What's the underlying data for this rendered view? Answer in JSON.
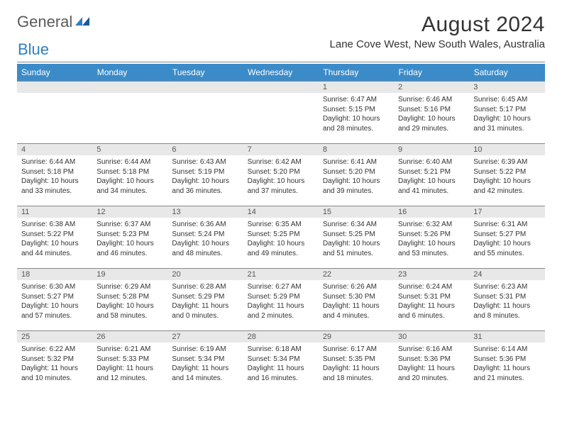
{
  "logo": {
    "text1": "General",
    "text2": "Blue"
  },
  "title": "August 2024",
  "location": "Lane Cove West, New South Wales, Australia",
  "colors": {
    "header_bg": "#3b8bc9",
    "header_text": "#ffffff",
    "daynum_bg": "#e8e8e8",
    "border": "#888888",
    "logo_gray": "#5a5a5a",
    "logo_blue": "#2f7fc1",
    "text": "#333333"
  },
  "day_names": [
    "Sunday",
    "Monday",
    "Tuesday",
    "Wednesday",
    "Thursday",
    "Friday",
    "Saturday"
  ],
  "weeks": [
    [
      {
        "blank": true
      },
      {
        "blank": true
      },
      {
        "blank": true
      },
      {
        "blank": true
      },
      {
        "n": "1",
        "sr": "6:47 AM",
        "ss": "5:15 PM",
        "d1": "10 hours",
        "d2": "and 28 minutes."
      },
      {
        "n": "2",
        "sr": "6:46 AM",
        "ss": "5:16 PM",
        "d1": "10 hours",
        "d2": "and 29 minutes."
      },
      {
        "n": "3",
        "sr": "6:45 AM",
        "ss": "5:17 PM",
        "d1": "10 hours",
        "d2": "and 31 minutes."
      }
    ],
    [
      {
        "n": "4",
        "sr": "6:44 AM",
        "ss": "5:18 PM",
        "d1": "10 hours",
        "d2": "and 33 minutes."
      },
      {
        "n": "5",
        "sr": "6:44 AM",
        "ss": "5:18 PM",
        "d1": "10 hours",
        "d2": "and 34 minutes."
      },
      {
        "n": "6",
        "sr": "6:43 AM",
        "ss": "5:19 PM",
        "d1": "10 hours",
        "d2": "and 36 minutes."
      },
      {
        "n": "7",
        "sr": "6:42 AM",
        "ss": "5:20 PM",
        "d1": "10 hours",
        "d2": "and 37 minutes."
      },
      {
        "n": "8",
        "sr": "6:41 AM",
        "ss": "5:20 PM",
        "d1": "10 hours",
        "d2": "and 39 minutes."
      },
      {
        "n": "9",
        "sr": "6:40 AM",
        "ss": "5:21 PM",
        "d1": "10 hours",
        "d2": "and 41 minutes."
      },
      {
        "n": "10",
        "sr": "6:39 AM",
        "ss": "5:22 PM",
        "d1": "10 hours",
        "d2": "and 42 minutes."
      }
    ],
    [
      {
        "n": "11",
        "sr": "6:38 AM",
        "ss": "5:22 PM",
        "d1": "10 hours",
        "d2": "and 44 minutes."
      },
      {
        "n": "12",
        "sr": "6:37 AM",
        "ss": "5:23 PM",
        "d1": "10 hours",
        "d2": "and 46 minutes."
      },
      {
        "n": "13",
        "sr": "6:36 AM",
        "ss": "5:24 PM",
        "d1": "10 hours",
        "d2": "and 48 minutes."
      },
      {
        "n": "14",
        "sr": "6:35 AM",
        "ss": "5:25 PM",
        "d1": "10 hours",
        "d2": "and 49 minutes."
      },
      {
        "n": "15",
        "sr": "6:34 AM",
        "ss": "5:25 PM",
        "d1": "10 hours",
        "d2": "and 51 minutes."
      },
      {
        "n": "16",
        "sr": "6:32 AM",
        "ss": "5:26 PM",
        "d1": "10 hours",
        "d2": "and 53 minutes."
      },
      {
        "n": "17",
        "sr": "6:31 AM",
        "ss": "5:27 PM",
        "d1": "10 hours",
        "d2": "and 55 minutes."
      }
    ],
    [
      {
        "n": "18",
        "sr": "6:30 AM",
        "ss": "5:27 PM",
        "d1": "10 hours",
        "d2": "and 57 minutes."
      },
      {
        "n": "19",
        "sr": "6:29 AM",
        "ss": "5:28 PM",
        "d1": "10 hours",
        "d2": "and 58 minutes."
      },
      {
        "n": "20",
        "sr": "6:28 AM",
        "ss": "5:29 PM",
        "d1": "11 hours",
        "d2": "and 0 minutes."
      },
      {
        "n": "21",
        "sr": "6:27 AM",
        "ss": "5:29 PM",
        "d1": "11 hours",
        "d2": "and 2 minutes."
      },
      {
        "n": "22",
        "sr": "6:26 AM",
        "ss": "5:30 PM",
        "d1": "11 hours",
        "d2": "and 4 minutes."
      },
      {
        "n": "23",
        "sr": "6:24 AM",
        "ss": "5:31 PM",
        "d1": "11 hours",
        "d2": "and 6 minutes."
      },
      {
        "n": "24",
        "sr": "6:23 AM",
        "ss": "5:31 PM",
        "d1": "11 hours",
        "d2": "and 8 minutes."
      }
    ],
    [
      {
        "n": "25",
        "sr": "6:22 AM",
        "ss": "5:32 PM",
        "d1": "11 hours",
        "d2": "and 10 minutes."
      },
      {
        "n": "26",
        "sr": "6:21 AM",
        "ss": "5:33 PM",
        "d1": "11 hours",
        "d2": "and 12 minutes."
      },
      {
        "n": "27",
        "sr": "6:19 AM",
        "ss": "5:34 PM",
        "d1": "11 hours",
        "d2": "and 14 minutes."
      },
      {
        "n": "28",
        "sr": "6:18 AM",
        "ss": "5:34 PM",
        "d1": "11 hours",
        "d2": "and 16 minutes."
      },
      {
        "n": "29",
        "sr": "6:17 AM",
        "ss": "5:35 PM",
        "d1": "11 hours",
        "d2": "and 18 minutes."
      },
      {
        "n": "30",
        "sr": "6:16 AM",
        "ss": "5:36 PM",
        "d1": "11 hours",
        "d2": "and 20 minutes."
      },
      {
        "n": "31",
        "sr": "6:14 AM",
        "ss": "5:36 PM",
        "d1": "11 hours",
        "d2": "and 21 minutes."
      }
    ]
  ],
  "labels": {
    "sunrise": "Sunrise:",
    "sunset": "Sunset:",
    "daylight": "Daylight:"
  }
}
